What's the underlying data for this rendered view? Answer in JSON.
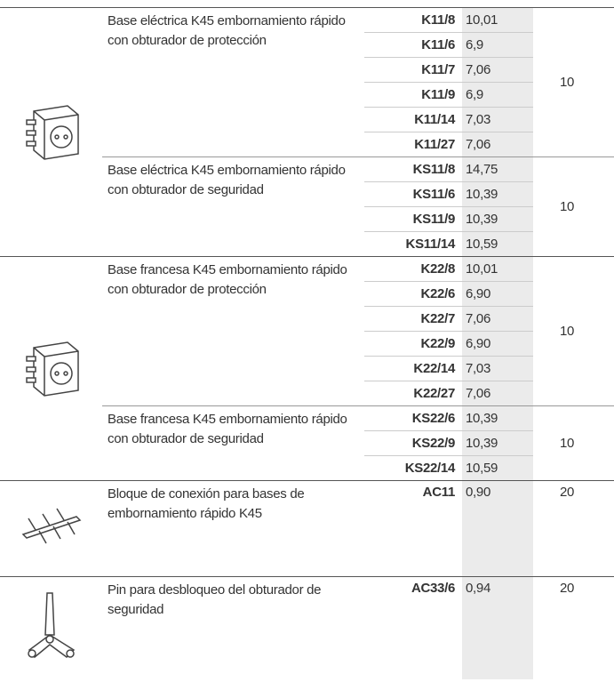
{
  "table": {
    "groups": [
      {
        "products": [
          {
            "description": "Base eléctrica K45 embornamiento rápido con obturador de protección",
            "pack": 10,
            "items": [
              {
                "code": "K11/8",
                "price": "10,01"
              },
              {
                "code": "K11/6",
                "price": "6,9"
              },
              {
                "code": "K11/7",
                "price": "7,06"
              },
              {
                "code": "K11/9",
                "price": "6,9"
              },
              {
                "code": "K11/14",
                "price": "7,03"
              },
              {
                "code": "K11/27",
                "price": "7,06"
              }
            ]
          },
          {
            "description": "Base eléctrica K45 embornamiento rápido con obturador de seguridad",
            "pack": 10,
            "items": [
              {
                "code": "KS11/8",
                "price": "14,75"
              },
              {
                "code": "KS11/6",
                "price": "10,39"
              },
              {
                "code": "KS11/9",
                "price": "10,39"
              },
              {
                "code": "KS11/14",
                "price": "10,59"
              }
            ]
          }
        ]
      },
      {
        "products": [
          {
            "description": "Base francesa K45 embornamiento rápido con obturador de protección",
            "pack": 10,
            "items": [
              {
                "code": "K22/8",
                "price": "10,01"
              },
              {
                "code": "K22/6",
                "price": "6,90"
              },
              {
                "code": "K22/7",
                "price": "7,06"
              },
              {
                "code": "K22/9",
                "price": "6,90"
              },
              {
                "code": "K22/14",
                "price": "7,03"
              },
              {
                "code": "K22/27",
                "price": "7,06"
              }
            ]
          },
          {
            "description": "Base francesa K45 embornamiento rápido con obturador de seguridad",
            "pack": 10,
            "items": [
              {
                "code": "KS22/6",
                "price": "10,39"
              },
              {
                "code": "KS22/9",
                "price": "10,39"
              },
              {
                "code": "KS22/14",
                "price": "10,59"
              }
            ]
          }
        ]
      },
      {
        "products": [
          {
            "description": "Bloque de conexión para bases de embornamiento rápido K45",
            "pack": 20,
            "items": [
              {
                "code": "AC11",
                "price": "0,90"
              }
            ]
          }
        ]
      },
      {
        "products": [
          {
            "description": "Pin para desbloqueo del obturador de seguridad",
            "pack": 20,
            "items": [
              {
                "code": "AC33/6",
                "price": "0,94"
              }
            ]
          }
        ]
      }
    ]
  }
}
